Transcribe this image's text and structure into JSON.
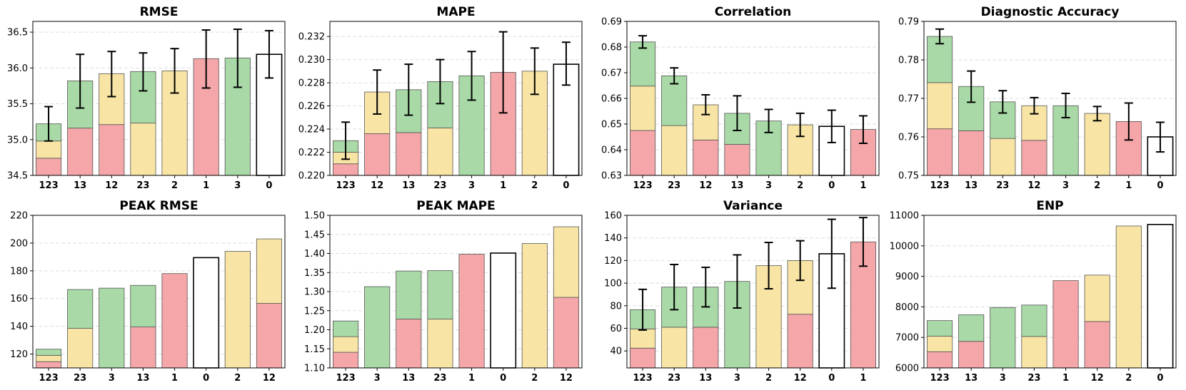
{
  "colors": {
    "red": "#f4a6a8",
    "yellow": "#f8e4a4",
    "green": "#a8d9a6",
    "white": "#ffffff",
    "edge": "#555555",
    "error_bar": "#000000"
  },
  "chart_data": [
    {
      "type": "bar",
      "stacked": true,
      "title": "RMSE",
      "ylim": [
        34.5,
        36.65
      ],
      "yticks": [
        "34.5",
        "35.0",
        "35.5",
        "36.0",
        "36.5"
      ],
      "grid": "y-dashed",
      "categories": [
        "123",
        "13",
        "12",
        "23",
        "2",
        "1",
        "3",
        "0"
      ],
      "bars": [
        {
          "segments": [
            {
              "color": "red",
              "value": 34.74
            },
            {
              "color": "yellow",
              "value": 34.98
            },
            {
              "color": "green",
              "value": 35.22
            }
          ],
          "error": [
            34.98,
            35.46
          ]
        },
        {
          "segments": [
            {
              "color": "red",
              "value": 35.16
            },
            {
              "color": "green",
              "value": 35.82
            }
          ],
          "error": [
            35.44,
            36.19
          ]
        },
        {
          "segments": [
            {
              "color": "red",
              "value": 35.21
            },
            {
              "color": "yellow",
              "value": 35.92
            }
          ],
          "error": [
            35.6,
            36.23
          ]
        },
        {
          "segments": [
            {
              "color": "yellow",
              "value": 35.23
            },
            {
              "color": "green",
              "value": 35.95
            }
          ],
          "error": [
            35.68,
            36.21
          ]
        },
        {
          "segments": [
            {
              "color": "yellow",
              "value": 35.96
            }
          ],
          "error": [
            35.65,
            36.27
          ]
        },
        {
          "segments": [
            {
              "color": "red",
              "value": 36.13
            }
          ],
          "error": [
            35.72,
            36.53
          ]
        },
        {
          "segments": [
            {
              "color": "green",
              "value": 36.14
            }
          ],
          "error": [
            35.73,
            36.54
          ]
        },
        {
          "segments": [
            {
              "color": "white",
              "value": 36.19
            }
          ],
          "error": [
            35.86,
            36.52
          ]
        }
      ]
    },
    {
      "type": "bar",
      "stacked": true,
      "title": "MAPE",
      "ylim": [
        0.22,
        0.2333
      ],
      "yticks": [
        "0.220",
        "0.222",
        "0.224",
        "0.226",
        "0.228",
        "0.230",
        "0.232"
      ],
      "grid": "y-dashed",
      "categories": [
        "123",
        "12",
        "13",
        "23",
        "3",
        "1",
        "2",
        "0"
      ],
      "bars": [
        {
          "segments": [
            {
              "color": "red",
              "value": 0.221
            },
            {
              "color": "yellow",
              "value": 0.222
            },
            {
              "color": "green",
              "value": 0.223
            }
          ],
          "error": [
            0.2214,
            0.2246
          ]
        },
        {
          "segments": [
            {
              "color": "red",
              "value": 0.2236
            },
            {
              "color": "yellow",
              "value": 0.2272
            }
          ],
          "error": [
            0.2253,
            0.2291
          ]
        },
        {
          "segments": [
            {
              "color": "red",
              "value": 0.2237
            },
            {
              "color": "green",
              "value": 0.2274
            }
          ],
          "error": [
            0.2252,
            0.2296
          ]
        },
        {
          "segments": [
            {
              "color": "yellow",
              "value": 0.2241
            },
            {
              "color": "green",
              "value": 0.2281
            }
          ],
          "error": [
            0.2262,
            0.23
          ]
        },
        {
          "segments": [
            {
              "color": "green",
              "value": 0.2286
            }
          ],
          "error": [
            0.2265,
            0.2307
          ]
        },
        {
          "segments": [
            {
              "color": "red",
              "value": 0.2289
            }
          ],
          "error": [
            0.2254,
            0.2324
          ]
        },
        {
          "segments": [
            {
              "color": "yellow",
              "value": 0.229
            }
          ],
          "error": [
            0.227,
            0.231
          ]
        },
        {
          "segments": [
            {
              "color": "white",
              "value": 0.2296
            }
          ],
          "error": [
            0.2278,
            0.2315
          ]
        }
      ]
    },
    {
      "type": "bar",
      "stacked": true,
      "title": "Correlation",
      "ylim": [
        0.63,
        0.69
      ],
      "yticks": [
        "0.63",
        "0.64",
        "0.65",
        "0.66",
        "0.67",
        "0.68",
        "0.69"
      ],
      "grid": "y-dashed",
      "categories": [
        "123",
        "23",
        "12",
        "13",
        "3",
        "2",
        "0",
        "1"
      ],
      "bars": [
        {
          "segments": [
            {
              "color": "red",
              "value": 0.6475
            },
            {
              "color": "yellow",
              "value": 0.6648
            },
            {
              "color": "green",
              "value": 0.682
            }
          ],
          "error": [
            0.6796,
            0.6844
          ]
        },
        {
          "segments": [
            {
              "color": "yellow",
              "value": 0.6494
            },
            {
              "color": "green",
              "value": 0.6688
            }
          ],
          "error": [
            0.6657,
            0.6719
          ]
        },
        {
          "segments": [
            {
              "color": "red",
              "value": 0.6438
            },
            {
              "color": "yellow",
              "value": 0.6575
            }
          ],
          "error": [
            0.6537,
            0.6614
          ]
        },
        {
          "segments": [
            {
              "color": "red",
              "value": 0.6421
            },
            {
              "color": "green",
              "value": 0.6542
            }
          ],
          "error": [
            0.6475,
            0.661
          ]
        },
        {
          "segments": [
            {
              "color": "green",
              "value": 0.6512
            }
          ],
          "error": [
            0.6467,
            0.6557
          ]
        },
        {
          "segments": [
            {
              "color": "yellow",
              "value": 0.6497
            }
          ],
          "error": [
            0.6452,
            0.6542
          ]
        },
        {
          "segments": [
            {
              "color": "white",
              "value": 0.6491
            }
          ],
          "error": [
            0.6428,
            0.6554
          ]
        },
        {
          "segments": [
            {
              "color": "red",
              "value": 0.6479
            }
          ],
          "error": [
            0.6425,
            0.6532
          ]
        }
      ]
    },
    {
      "type": "bar",
      "stacked": true,
      "title": "Diagnostic Accuracy",
      "ylim": [
        0.75,
        0.79
      ],
      "yticks": [
        "0.75",
        "0.76",
        "0.77",
        "0.78",
        "0.79"
      ],
      "grid": "y-dashed",
      "categories": [
        "123",
        "13",
        "23",
        "12",
        "3",
        "2",
        "1",
        "0"
      ],
      "bars": [
        {
          "segments": [
            {
              "color": "red",
              "value": 0.7621
            },
            {
              "color": "yellow",
              "value": 0.7741
            },
            {
              "color": "green",
              "value": 0.7861
            }
          ],
          "error": [
            0.7842,
            0.788
          ]
        },
        {
          "segments": [
            {
              "color": "red",
              "value": 0.7616
            },
            {
              "color": "green",
              "value": 0.7731
            }
          ],
          "error": [
            0.769,
            0.7771
          ]
        },
        {
          "segments": [
            {
              "color": "yellow",
              "value": 0.7596
            },
            {
              "color": "green",
              "value": 0.7691
            }
          ],
          "error": [
            0.7662,
            0.772
          ]
        },
        {
          "segments": [
            {
              "color": "red",
              "value": 0.7591
            },
            {
              "color": "yellow",
              "value": 0.7681
            }
          ],
          "error": [
            0.766,
            0.7702
          ]
        },
        {
          "segments": [
            {
              "color": "green",
              "value": 0.7681
            }
          ],
          "error": [
            0.765,
            0.7713
          ]
        },
        {
          "segments": [
            {
              "color": "yellow",
              "value": 0.7661
            }
          ],
          "error": [
            0.7642,
            0.7679
          ]
        },
        {
          "segments": [
            {
              "color": "red",
              "value": 0.764
            }
          ],
          "error": [
            0.7592,
            0.7688
          ]
        },
        {
          "segments": [
            {
              "color": "white",
              "value": 0.76
            }
          ],
          "error": [
            0.7561,
            0.7638
          ]
        }
      ]
    },
    {
      "type": "bar",
      "stacked": true,
      "title": "PEAK RMSE",
      "ylim": [
        110,
        220
      ],
      "yticks": [
        "120",
        "140",
        "160",
        "180",
        "200",
        "220"
      ],
      "grid": "y-dashed",
      "categories": [
        "123",
        "23",
        "3",
        "13",
        "1",
        "0",
        "2",
        "12"
      ],
      "bars": [
        {
          "segments": [
            {
              "color": "red",
              "value": 114.5
            },
            {
              "color": "yellow",
              "value": 119
            },
            {
              "color": "green",
              "value": 123.5
            }
          ]
        },
        {
          "segments": [
            {
              "color": "yellow",
              "value": 138.5
            },
            {
              "color": "green",
              "value": 166.5
            }
          ]
        },
        {
          "segments": [
            {
              "color": "green",
              "value": 167.5
            }
          ]
        },
        {
          "segments": [
            {
              "color": "red",
              "value": 139.5
            },
            {
              "color": "green",
              "value": 169.5
            }
          ]
        },
        {
          "segments": [
            {
              "color": "red",
              "value": 178
            }
          ]
        },
        {
          "segments": [
            {
              "color": "white",
              "value": 189.5
            }
          ]
        },
        {
          "segments": [
            {
              "color": "yellow",
              "value": 194
            }
          ]
        },
        {
          "segments": [
            {
              "color": "red",
              "value": 156.5
            },
            {
              "color": "yellow",
              "value": 203
            }
          ]
        }
      ]
    },
    {
      "type": "bar",
      "stacked": true,
      "title": "PEAK MAPE",
      "ylim": [
        1.1,
        1.5
      ],
      "yticks": [
        "1.10",
        "1.15",
        "1.20",
        "1.25",
        "1.30",
        "1.35",
        "1.40",
        "1.45",
        "1.50"
      ],
      "grid": "y-dashed",
      "categories": [
        "123",
        "3",
        "13",
        "23",
        "1",
        "0",
        "2",
        "12"
      ],
      "bars": [
        {
          "segments": [
            {
              "color": "red",
              "value": 1.141
            },
            {
              "color": "yellow",
              "value": 1.182
            },
            {
              "color": "green",
              "value": 1.223
            }
          ]
        },
        {
          "segments": [
            {
              "color": "green",
              "value": 1.313
            }
          ]
        },
        {
          "segments": [
            {
              "color": "red",
              "value": 1.228
            },
            {
              "color": "green",
              "value": 1.354
            }
          ]
        },
        {
          "segments": [
            {
              "color": "yellow",
              "value": 1.228
            },
            {
              "color": "green",
              "value": 1.355
            }
          ]
        },
        {
          "segments": [
            {
              "color": "red",
              "value": 1.398
            }
          ]
        },
        {
          "segments": [
            {
              "color": "white",
              "value": 1.401
            }
          ]
        },
        {
          "segments": [
            {
              "color": "yellow",
              "value": 1.426
            }
          ]
        },
        {
          "segments": [
            {
              "color": "red",
              "value": 1.285
            },
            {
              "color": "yellow",
              "value": 1.47
            }
          ]
        }
      ]
    },
    {
      "type": "bar",
      "stacked": true,
      "title": "Variance",
      "ylim": [
        25,
        160
      ],
      "yticks": [
        "40",
        "60",
        "80",
        "100",
        "120",
        "140",
        "160"
      ],
      "grid": "y-dashed",
      "categories": [
        "123",
        "23",
        "13",
        "3",
        "2",
        "12",
        "0",
        "1"
      ],
      "bars": [
        {
          "segments": [
            {
              "color": "red",
              "value": 42.5
            },
            {
              "color": "yellow",
              "value": 59.5
            },
            {
              "color": "green",
              "value": 76.5
            }
          ],
          "error": [
            58.5,
            94.5
          ]
        },
        {
          "segments": [
            {
              "color": "yellow",
              "value": 61
            },
            {
              "color": "green",
              "value": 96.5
            }
          ],
          "error": [
            76.5,
            116.5
          ]
        },
        {
          "segments": [
            {
              "color": "red",
              "value": 61
            },
            {
              "color": "green",
              "value": 96.5
            }
          ],
          "error": [
            79,
            114
          ]
        },
        {
          "segments": [
            {
              "color": "green",
              "value": 101.5
            }
          ],
          "error": [
            78,
            125
          ]
        },
        {
          "segments": [
            {
              "color": "yellow",
              "value": 115.5
            }
          ],
          "error": [
            95,
            136
          ]
        },
        {
          "segments": [
            {
              "color": "red",
              "value": 72.5
            },
            {
              "color": "yellow",
              "value": 120
            }
          ],
          "error": [
            102.5,
            137.5
          ]
        },
        {
          "segments": [
            {
              "color": "white",
              "value": 126
            }
          ],
          "error": [
            95.5,
            156.5
          ]
        },
        {
          "segments": [
            {
              "color": "red",
              "value": 136.5
            }
          ],
          "error": [
            115,
            158
          ]
        }
      ]
    },
    {
      "type": "bar",
      "stacked": true,
      "title": "ENP",
      "ylim": [
        6000,
        11000
      ],
      "yticks": [
        "6000",
        "7000",
        "8000",
        "9000",
        "10000",
        "11000"
      ],
      "grid": "y-dashed",
      "categories": [
        "123",
        "13",
        "3",
        "23",
        "1",
        "12",
        "2",
        "0"
      ],
      "bars": [
        {
          "segments": [
            {
              "color": "red",
              "value": 6530
            },
            {
              "color": "yellow",
              "value": 7040
            },
            {
              "color": "green",
              "value": 7550
            }
          ]
        },
        {
          "segments": [
            {
              "color": "red",
              "value": 6870
            },
            {
              "color": "green",
              "value": 7740
            }
          ]
        },
        {
          "segments": [
            {
              "color": "green",
              "value": 7980
            }
          ]
        },
        {
          "segments": [
            {
              "color": "yellow",
              "value": 7030
            },
            {
              "color": "green",
              "value": 8060
            }
          ]
        },
        {
          "segments": [
            {
              "color": "red",
              "value": 8860
            }
          ]
        },
        {
          "segments": [
            {
              "color": "red",
              "value": 7520
            },
            {
              "color": "yellow",
              "value": 9040
            }
          ]
        },
        {
          "segments": [
            {
              "color": "yellow",
              "value": 10650
            }
          ]
        },
        {
          "segments": [
            {
              "color": "white",
              "value": 10700
            }
          ]
        }
      ]
    }
  ]
}
